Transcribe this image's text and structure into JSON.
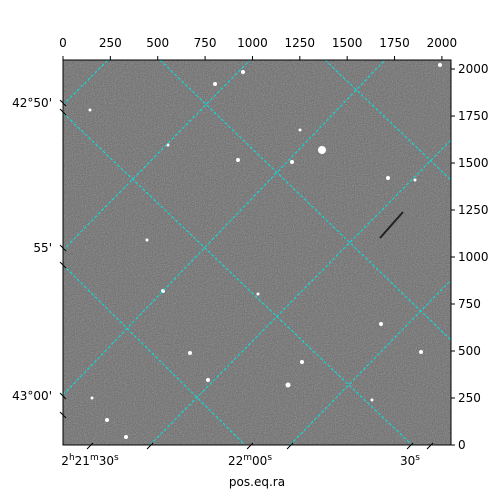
{
  "chart_data": {
    "type": "image",
    "xlabel": "pos.eq.ra",
    "xlim": [
      0,
      2048
    ],
    "ylim": [
      0,
      2048
    ],
    "xticks": [
      0,
      250,
      500,
      750,
      1000,
      1250,
      1500,
      1750,
      2000
    ],
    "yticks": [
      0,
      250,
      500,
      750,
      1000,
      1250,
      1500,
      1750,
      2000
    ],
    "dec_tick_labels": [
      "42°50'",
      "55'",
      "43°00'"
    ],
    "ra_tick_labels": [
      "2h21m30s",
      "22m00s",
      "30s"
    ],
    "grid_color": "#00e5e5"
  }
}
